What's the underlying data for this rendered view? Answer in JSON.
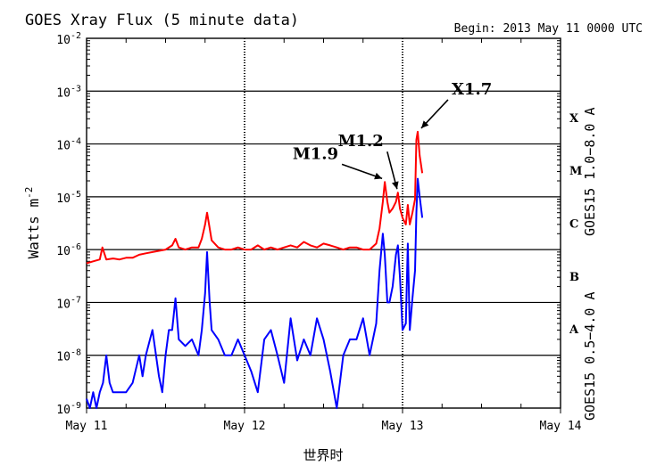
{
  "chart_data": {
    "type": "line",
    "title": "GOES Xray Flux (5 minute data)",
    "begin_label": "Begin:  2013 May 11 0000 UTC",
    "xlabel": "世界时",
    "ylabel": "Watts m",
    "ylabel_exponent": "-2",
    "y_scale": "log",
    "ylim": [
      1e-09,
      0.01
    ],
    "y_ticks": [
      {
        "value": 0.01,
        "base": "10",
        "exp": "-2"
      },
      {
        "value": 0.001,
        "base": "10",
        "exp": "-3"
      },
      {
        "value": 0.0001,
        "base": "10",
        "exp": "-4"
      },
      {
        "value": 1e-05,
        "base": "10",
        "exp": "-5"
      },
      {
        "value": 1e-06,
        "base": "10",
        "exp": "-6"
      },
      {
        "value": 1e-07,
        "base": "10",
        "exp": "-7"
      },
      {
        "value": 1e-08,
        "base": "10",
        "exp": "-8"
      },
      {
        "value": 1e-09,
        "base": "10",
        "exp": "-9"
      }
    ],
    "xlim": [
      0,
      72
    ],
    "x_unit": "hours since 2013-05-11 00:00 UTC",
    "x_ticks": [
      {
        "value": 0,
        "label": "May 11"
      },
      {
        "value": 24,
        "label": "May 12"
      },
      {
        "value": 48,
        "label": "May 13"
      },
      {
        "value": 72,
        "label": "May 14"
      }
    ],
    "flare_classes": [
      {
        "label": "X",
        "value": 0.0001
      },
      {
        "label": "M",
        "value": 1e-05
      },
      {
        "label": "C",
        "value": 1e-06
      },
      {
        "label": "B",
        "value": 1e-07
      },
      {
        "label": "A",
        "value": 1e-08
      }
    ],
    "grid": true,
    "series": [
      {
        "name": "GOES15 1.0−8.0 A",
        "color": "#ff0000",
        "points": [
          [
            0,
            5.5e-07
          ],
          [
            1,
            6e-07
          ],
          [
            2,
            6.5e-07
          ],
          [
            2.4,
            1.1e-06
          ],
          [
            3,
            6.5e-07
          ],
          [
            4,
            6.8e-07
          ],
          [
            5,
            6.5e-07
          ],
          [
            6,
            7e-07
          ],
          [
            7,
            7e-07
          ],
          [
            8,
            8e-07
          ],
          [
            9,
            8.5e-07
          ],
          [
            10,
            9e-07
          ],
          [
            11,
            9.5e-07
          ],
          [
            12,
            1e-06
          ],
          [
            13,
            1.2e-06
          ],
          [
            13.5,
            1.6e-06
          ],
          [
            14,
            1.1e-06
          ],
          [
            15,
            1e-06
          ],
          [
            16,
            1.1e-06
          ],
          [
            17,
            1.1e-06
          ],
          [
            17.5,
            1.6e-06
          ],
          [
            18,
            3e-06
          ],
          [
            18.3,
            5e-06
          ],
          [
            18.6,
            3e-06
          ],
          [
            19,
            1.5e-06
          ],
          [
            20,
            1.1e-06
          ],
          [
            21,
            1e-06
          ],
          [
            22,
            1e-06
          ],
          [
            23,
            1.1e-06
          ],
          [
            24,
            1e-06
          ],
          [
            25,
            1e-06
          ],
          [
            26,
            1.2e-06
          ],
          [
            27,
            1e-06
          ],
          [
            28,
            1.1e-06
          ],
          [
            29,
            1e-06
          ],
          [
            30,
            1.1e-06
          ],
          [
            31,
            1.2e-06
          ],
          [
            32,
            1.1e-06
          ],
          [
            33,
            1.4e-06
          ],
          [
            34,
            1.2e-06
          ],
          [
            35,
            1.1e-06
          ],
          [
            36,
            1.3e-06
          ],
          [
            37,
            1.2e-06
          ],
          [
            38,
            1.1e-06
          ],
          [
            39,
            1e-06
          ],
          [
            40,
            1.1e-06
          ],
          [
            41,
            1.1e-06
          ],
          [
            42,
            1e-06
          ],
          [
            43,
            1e-06
          ],
          [
            44,
            1.3e-06
          ],
          [
            44.5,
            2.5e-06
          ],
          [
            45,
            8e-06
          ],
          [
            45.3,
            1.9e-05
          ],
          [
            45.7,
            8e-06
          ],
          [
            46,
            5e-06
          ],
          [
            46.5,
            6e-06
          ],
          [
            47,
            8e-06
          ],
          [
            47.3,
            1.2e-05
          ],
          [
            47.6,
            6e-06
          ],
          [
            48,
            4e-06
          ],
          [
            48.5,
            3e-06
          ],
          [
            48.8,
            7e-06
          ],
          [
            49.1,
            3e-06
          ],
          [
            49.5,
            5e-06
          ],
          [
            49.9,
            9e-06
          ],
          [
            50.1,
            0.00012
          ],
          [
            50.3,
            0.00017
          ],
          [
            50.6,
            6e-05
          ],
          [
            51,
            2.8e-05
          ]
        ]
      },
      {
        "name": "GOES15 0.5−4.0 A",
        "color": "#0000ff",
        "points": [
          [
            0,
            1.5e-09
          ],
          [
            0.5,
            1e-09
          ],
          [
            1,
            2e-09
          ],
          [
            1.5,
            1e-09
          ],
          [
            2,
            2e-09
          ],
          [
            2.5,
            3e-09
          ],
          [
            3,
            1e-08
          ],
          [
            3.5,
            3e-09
          ],
          [
            4,
            2e-09
          ],
          [
            5,
            2e-09
          ],
          [
            6,
            2e-09
          ],
          [
            7,
            3e-09
          ],
          [
            8,
            1e-08
          ],
          [
            8.5,
            4e-09
          ],
          [
            9,
            1e-08
          ],
          [
            10,
            3e-08
          ],
          [
            11,
            4e-09
          ],
          [
            11.5,
            2e-09
          ],
          [
            12,
            1e-08
          ],
          [
            12.5,
            3e-08
          ],
          [
            13,
            3e-08
          ],
          [
            13.5,
            1.2e-07
          ],
          [
            14,
            2e-08
          ],
          [
            15,
            1.5e-08
          ],
          [
            16,
            2e-08
          ],
          [
            17,
            1e-08
          ],
          [
            17.5,
            3e-08
          ],
          [
            18,
            1.5e-07
          ],
          [
            18.3,
            9e-07
          ],
          [
            18.7,
            1e-07
          ],
          [
            19,
            3e-08
          ],
          [
            20,
            2e-08
          ],
          [
            21,
            1e-08
          ],
          [
            22,
            1e-08
          ],
          [
            23,
            2e-08
          ],
          [
            24,
            1e-08
          ],
          [
            25,
            5e-09
          ],
          [
            26,
            2e-09
          ],
          [
            27,
            2e-08
          ],
          [
            28,
            3e-08
          ],
          [
            29,
            1e-08
          ],
          [
            30,
            3e-09
          ],
          [
            31,
            5e-08
          ],
          [
            32,
            8e-09
          ],
          [
            33,
            2e-08
          ],
          [
            34,
            1e-08
          ],
          [
            35,
            5e-08
          ],
          [
            36,
            2e-08
          ],
          [
            37,
            5e-09
          ],
          [
            38,
            1e-09
          ],
          [
            39,
            1e-08
          ],
          [
            40,
            2e-08
          ],
          [
            41,
            2e-08
          ],
          [
            42,
            5e-08
          ],
          [
            43,
            1e-08
          ],
          [
            43.5,
            2e-08
          ],
          [
            44,
            4e-08
          ],
          [
            44.5,
            4e-07
          ],
          [
            45,
            2e-06
          ],
          [
            45.3,
            8e-07
          ],
          [
            45.7,
            1e-07
          ],
          [
            46,
            1e-07
          ],
          [
            46.5,
            2e-07
          ],
          [
            47,
            8e-07
          ],
          [
            47.3,
            1.2e-06
          ],
          [
            47.6,
            3e-07
          ],
          [
            48,
            3e-08
          ],
          [
            48.5,
            4e-08
          ],
          [
            48.8,
            1.3e-06
          ],
          [
            49.1,
            3e-08
          ],
          [
            49.5,
            1.2e-07
          ],
          [
            49.9,
            4e-07
          ],
          [
            50.1,
            5e-06
          ],
          [
            50.3,
            2.2e-05
          ],
          [
            50.6,
            1e-05
          ],
          [
            51,
            4e-06
          ]
        ]
      }
    ],
    "annotations": [
      {
        "text": "X1.7",
        "x": 50.3,
        "y": 0.00017
      },
      {
        "text": "M1.2",
        "x": 47.3,
        "y": 1.2e-05
      },
      {
        "text": "M1.9",
        "x": 45.3,
        "y": 1.9e-05
      }
    ]
  }
}
